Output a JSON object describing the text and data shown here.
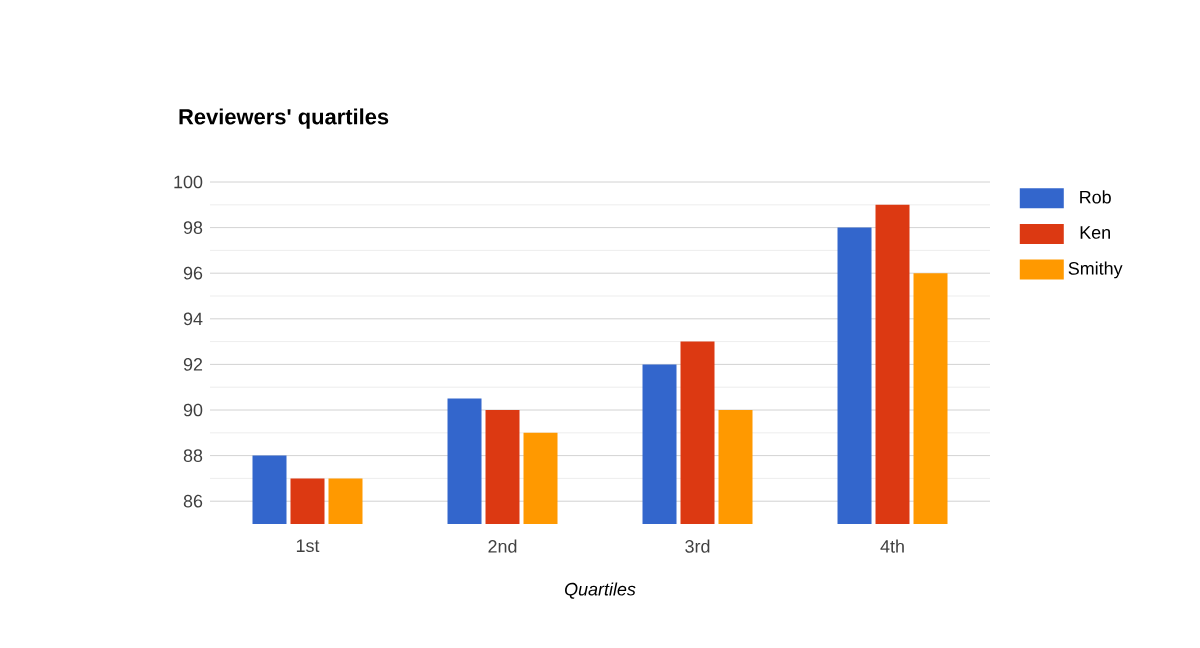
{
  "chart_data": {
    "type": "bar",
    "title": "Reviewers' quartiles",
    "xlabel": "Quartiles",
    "categories": [
      "1st",
      "2nd",
      "3rd",
      "4th"
    ],
    "series": [
      {
        "name": "Rob",
        "color": "#3366cc",
        "values": [
          88,
          90.5,
          92,
          98
        ]
      },
      {
        "name": "Ken",
        "color": "#dc3912",
        "values": [
          87,
          90,
          93,
          99
        ]
      },
      {
        "name": "Smithy",
        "color": "#ff9900",
        "values": [
          87,
          89,
          90,
          96
        ]
      }
    ],
    "ylim": [
      85,
      100
    ],
    "yticks": [
      86,
      88,
      90,
      92,
      94,
      96,
      98,
      100
    ],
    "grid": "y",
    "legend": "top right"
  }
}
